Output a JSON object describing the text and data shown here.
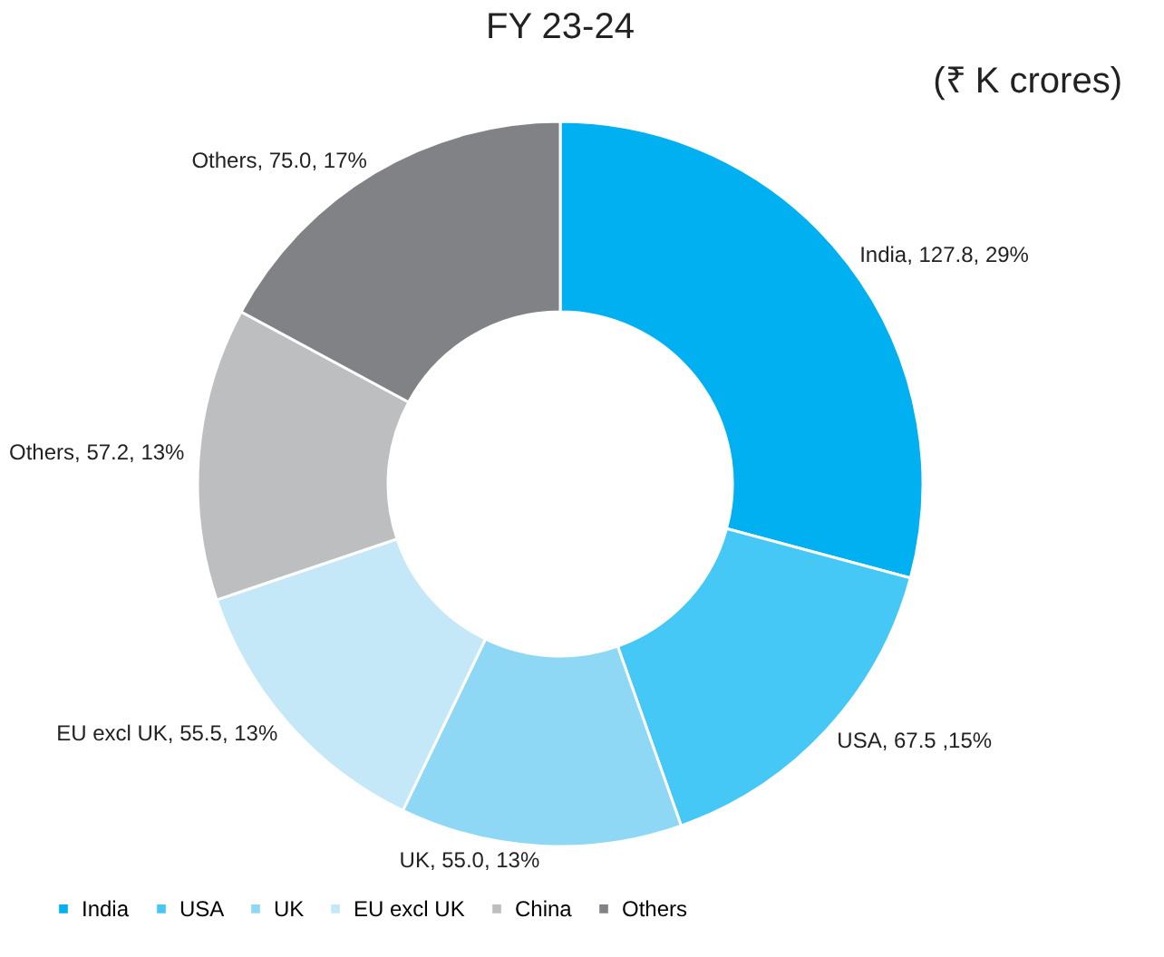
{
  "chart_data": {
    "type": "donut",
    "title": "FY 23-24",
    "annotations": [
      "(₹ K crores)"
    ],
    "categories": [
      "India",
      "USA",
      "UK",
      "EU excl UK",
      "China",
      "Others"
    ],
    "values": [
      127.8,
      67.5,
      55.0,
      55.5,
      57.2,
      75.0
    ],
    "colors": [
      "#00b0f0",
      "#45c8f5",
      "#8fd8f5",
      "#c5e8f8",
      "#bcbec0",
      "#808285"
    ],
    "value_labels": [
      "India, 127.8, 29%",
      "USA, 67.5 ,15%",
      "UK, 55.0, 13%",
      "EU excl UK,  55.5, 13%",
      "Others, 57.2, 13%",
      "Others, 75.0, 17%"
    ],
    "legend": "bottom"
  }
}
